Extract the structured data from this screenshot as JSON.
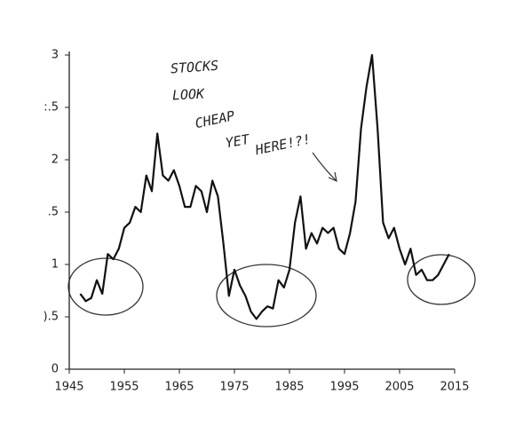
{
  "chart_data": {
    "type": "line",
    "annotations": [
      "STOCKS",
      "LOOK",
      "CHEAP",
      "YET",
      "HERE!?!"
    ],
    "x": [
      1947,
      1948,
      1949,
      1950,
      1951,
      1952,
      1953,
      1954,
      1955,
      1956,
      1957,
      1958,
      1959,
      1960,
      1961,
      1962,
      1963,
      1964,
      1965,
      1966,
      1967,
      1968,
      1969,
      1970,
      1971,
      1972,
      1973,
      1974,
      1975,
      1976,
      1977,
      1978,
      1979,
      1980,
      1981,
      1982,
      1983,
      1984,
      1985,
      1986,
      1987,
      1988,
      1989,
      1990,
      1991,
      1992,
      1993,
      1994,
      1995,
      1996,
      1997,
      1998,
      1999,
      2000,
      2001,
      2002,
      2003,
      2004,
      2005,
      2006,
      2007,
      2008,
      2009,
      2010,
      2011,
      2012,
      2013,
      2014
    ],
    "series": [
      {
        "color": "#111111",
        "values": [
          0.72,
          0.65,
          0.68,
          0.85,
          0.72,
          1.1,
          1.05,
          1.15,
          1.35,
          1.4,
          1.55,
          1.5,
          1.85,
          1.7,
          2.25,
          1.85,
          1.8,
          1.9,
          1.75,
          1.55,
          1.55,
          1.75,
          1.7,
          1.5,
          1.8,
          1.65,
          1.2,
          0.7,
          0.95,
          0.8,
          0.7,
          0.55,
          0.48,
          0.55,
          0.6,
          0.58,
          0.85,
          0.78,
          0.95,
          1.4,
          1.65,
          1.15,
          1.3,
          1.2,
          1.35,
          1.3,
          1.35,
          1.15,
          1.1,
          1.3,
          1.6,
          2.3,
          2.7,
          3.0,
          2.3,
          1.4,
          1.25,
          1.35,
          1.15,
          1.0,
          1.15,
          0.9,
          0.95,
          0.85,
          0.85,
          0.9,
          1.0,
          1.1
        ]
      }
    ],
    "xlim": [
      1945,
      2015
    ],
    "xticks": [
      1945,
      1955,
      1965,
      1975,
      1985,
      1995,
      2005,
      2015
    ],
    "ylim": [
      0,
      3
    ],
    "yticks": [
      0,
      {
        "value": 0.5,
        "label": ").5"
      },
      1,
      {
        "value": 1.5,
        "label": ".5"
      },
      2,
      {
        "value": 2.5,
        "label": ":.5"
      },
      3
    ]
  }
}
